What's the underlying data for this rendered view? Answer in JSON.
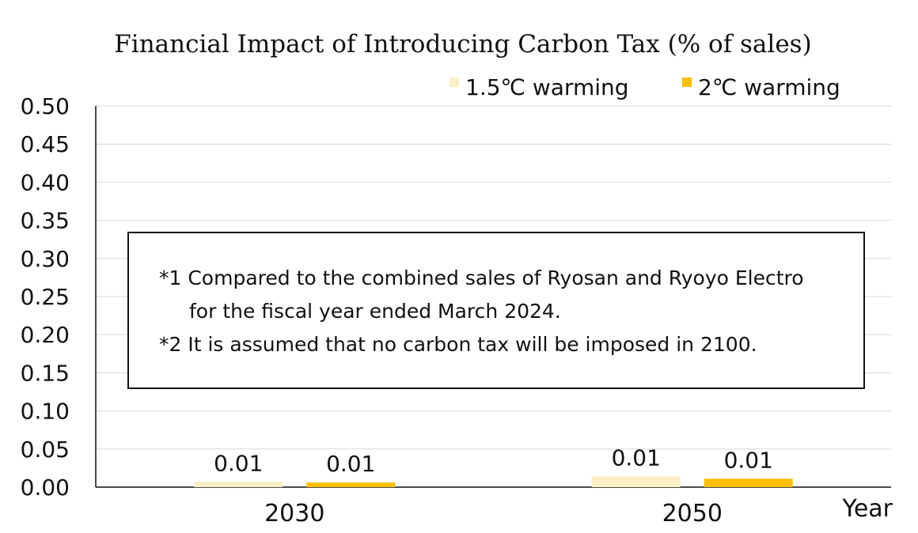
{
  "chart_data": {
    "type": "bar",
    "title": "Financial Impact of Introducing Carbon Tax (% of sales)",
    "xlabel": "Year",
    "ylabel": "",
    "categories": [
      "2030",
      "2050"
    ],
    "series": [
      {
        "name": "1.5℃ warming",
        "values": [
          0.007,
          0.014
        ],
        "labels": [
          "0.01",
          "0.01"
        ],
        "color": "#FCEFC7"
      },
      {
        "name": "2℃ warming",
        "values": [
          0.006,
          0.011
        ],
        "labels": [
          "0.01",
          "0.01"
        ],
        "color": "#FFC000"
      }
    ],
    "ylim": [
      0,
      0.5
    ],
    "yticks": [
      "0.00",
      "0.05",
      "0.10",
      "0.15",
      "0.20",
      "0.25",
      "0.30",
      "0.35",
      "0.40",
      "0.45",
      "0.50"
    ],
    "grid": true,
    "legend_position": "top-right"
  },
  "notes": {
    "line1": "*1 Compared to the combined sales of Ryosan and Ryoyo Electro",
    "line2": "for the fiscal year ended March 2024.",
    "line3": "*2 It is assumed that no carbon tax will be imposed in 2100."
  }
}
